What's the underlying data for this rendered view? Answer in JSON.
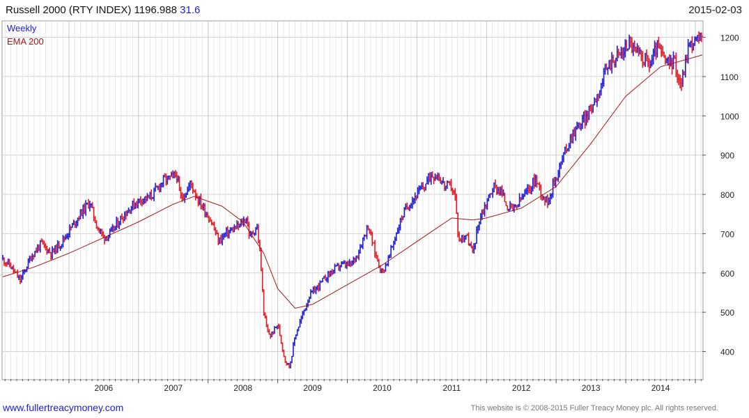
{
  "header": {
    "title": "Russell 2000 (RTY INDEX) 1196.988",
    "change": "31.6",
    "date": "2015-02-03"
  },
  "legend": {
    "period": "Weekly",
    "ema": "EMA 200"
  },
  "footer": {
    "url": "www.fullertreacymoney.com",
    "copyright": "This website is © 2008-2015 Fuller Treacy Money plc. All rights reserved."
  },
  "colors": {
    "up": "#1a1ad6",
    "down": "#e8141c",
    "ema": "#a01818",
    "grid": "#d0d0d0",
    "period_label": "#1a1ad6",
    "ema_label": "#a01818"
  },
  "chart_data": {
    "type": "line",
    "style": "weekly price bars (blue up / red down) with EMA 200 overlay",
    "ylim": [
      330,
      1240
    ],
    "yticks": [
      400,
      500,
      600,
      700,
      800,
      900,
      1000,
      1100,
      1200
    ],
    "xlim": [
      2005.05,
      2015.1
    ],
    "xticks": [
      2006,
      2007,
      2008,
      2009,
      2010,
      2011,
      2012,
      2013,
      2014
    ],
    "xtick_labels": [
      "2006",
      "2007",
      "2008",
      "2009",
      "2010",
      "2011",
      "2012",
      "2013",
      "2014"
    ],
    "grid": true,
    "legend_position": "top-left",
    "series": [
      {
        "name": "Weekly",
        "x": [
          2005.05,
          2005.15,
          2005.3,
          2005.45,
          2005.6,
          2005.75,
          2005.9,
          2006.05,
          2006.2,
          2006.3,
          2006.4,
          2006.5,
          2006.6,
          2006.75,
          2006.9,
          2007.05,
          2007.15,
          2007.25,
          2007.35,
          2007.45,
          2007.55,
          2007.6,
          2007.7,
          2007.75,
          2007.85,
          2007.95,
          2008.05,
          2008.15,
          2008.25,
          2008.35,
          2008.45,
          2008.55,
          2008.6,
          2008.7,
          2008.75,
          2008.8,
          2008.85,
          2008.9,
          2009.0,
          2009.1,
          2009.17,
          2009.25,
          2009.35,
          2009.45,
          2009.6,
          2009.75,
          2009.9,
          2010.05,
          2010.15,
          2010.25,
          2010.3,
          2010.4,
          2010.5,
          2010.6,
          2010.7,
          2010.8,
          2010.9,
          2011.0,
          2011.1,
          2011.2,
          2011.3,
          2011.4,
          2011.5,
          2011.55,
          2011.6,
          2011.7,
          2011.8,
          2011.9,
          2012.0,
          2012.1,
          2012.2,
          2012.3,
          2012.4,
          2012.5,
          2012.6,
          2012.7,
          2012.8,
          2012.87,
          2012.95,
          2013.05,
          2013.15,
          2013.25,
          2013.35,
          2013.45,
          2013.55,
          2013.65,
          2013.75,
          2013.85,
          2013.95,
          2014.05,
          2014.15,
          2014.25,
          2014.35,
          2014.45,
          2014.5,
          2014.6,
          2014.7,
          2014.75,
          2014.8,
          2014.9,
          2015.0,
          2015.1
        ],
        "y": [
          635,
          620,
          580,
          640,
          675,
          650,
          680,
          720,
          760,
          780,
          720,
          690,
          700,
          740,
          770,
          790,
          790,
          810,
          835,
          840,
          850,
          790,
          810,
          830,
          790,
          760,
          730,
          680,
          700,
          710,
          720,
          740,
          690,
          720,
          640,
          500,
          450,
          440,
          470,
          380,
          360,
          440,
          490,
          540,
          570,
          600,
          620,
          620,
          650,
          700,
          720,
          650,
          600,
          640,
          700,
          750,
          780,
          800,
          820,
          850,
          850,
          820,
          820,
          790,
          680,
          700,
          650,
          740,
          780,
          820,
          810,
          770,
          760,
          790,
          810,
          840,
          800,
          780,
          820,
          870,
          920,
          960,
          980,
          1000,
          1040,
          1080,
          1130,
          1150,
          1160,
          1190,
          1160,
          1150,
          1130,
          1180,
          1160,
          1130,
          1140,
          1100,
          1080,
          1180,
          1190,
          1196
        ]
      },
      {
        "name": "EMA 200",
        "x": [
          2005.05,
          2005.5,
          2006.0,
          2006.5,
          2007.0,
          2007.5,
          2007.8,
          2008.2,
          2008.5,
          2008.8,
          2009.0,
          2009.25,
          2009.5,
          2010.0,
          2010.5,
          2011.0,
          2011.5,
          2011.8,
          2012.0,
          2012.5,
          2013.0,
          2013.5,
          2014.0,
          2014.5,
          2015.1
        ],
        "y": [
          590,
          615,
          650,
          690,
          730,
          775,
          795,
          770,
          730,
          650,
          560,
          510,
          520,
          570,
          620,
          680,
          740,
          735,
          740,
          765,
          820,
          930,
          1050,
          1125,
          1155
        ]
      }
    ]
  }
}
